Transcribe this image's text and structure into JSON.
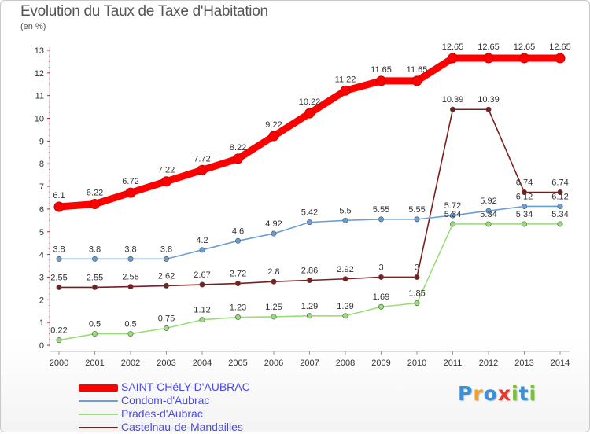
{
  "header": {
    "title": "Evolution du Taux de Taxe d'Habitation",
    "subtitle": "(en %)"
  },
  "chart_data": {
    "type": "line",
    "x": [
      "2000",
      "2001",
      "2002",
      "2003",
      "2004",
      "2005",
      "2006",
      "2007",
      "2008",
      "2009",
      "2010",
      "2011",
      "2012",
      "2013",
      "2014"
    ],
    "ylim": [
      0,
      13
    ],
    "yticks": [
      "0",
      "1",
      "2",
      "3",
      "4",
      "5",
      "6",
      "7",
      "8",
      "9",
      "10",
      "11",
      "12",
      "13"
    ],
    "grid": false,
    "legend_position": "bottom-left",
    "series": [
      {
        "name": "SAINT-CHéLY-D'AUBRAC",
        "color": "#ff0000",
        "values": [
          6.1,
          6.22,
          6.72,
          7.22,
          7.72,
          8.22,
          9.22,
          10.22,
          11.22,
          11.65,
          11.65,
          12.65,
          12.65,
          12.65,
          12.65
        ],
        "labels": [
          "6.1",
          "6.22",
          "6.72",
          "7.22",
          "7.72",
          "8.22",
          "9.22",
          "10.22",
          "11.22",
          "11.65",
          "11.65",
          "12.65",
          "12.65",
          "12.65",
          "12.65"
        ]
      },
      {
        "name": "Condom-d'Aubrac",
        "color": "#6a9fd4",
        "values": [
          3.8,
          3.8,
          3.8,
          3.8,
          4.2,
          4.6,
          4.92,
          5.42,
          5.5,
          5.55,
          5.55,
          5.72,
          5.92,
          6.12,
          6.12
        ],
        "labels": [
          "3.8",
          "3.8",
          "3.8",
          "3.8",
          "4.2",
          "4.6",
          "4.92",
          "5.42",
          "5.5",
          "5.55",
          "5.55",
          "5.72",
          "5.92",
          "6.12",
          "6.12"
        ]
      },
      {
        "name": "Prades-d'Aubrac",
        "color": "#99dd77",
        "values": [
          0.22,
          0.5,
          0.5,
          0.75,
          1.12,
          1.23,
          1.25,
          1.29,
          1.29,
          1.69,
          1.85,
          5.34,
          5.34,
          5.34,
          5.34
        ],
        "labels": [
          "0.22",
          "0.5",
          "0.5",
          "0.75",
          "1.12",
          "1.23",
          "1.25",
          "1.29",
          "1.29",
          "1.69",
          "1.85",
          "5.34",
          "5.34",
          "5.34",
          "5.34"
        ]
      },
      {
        "name": "Castelnau-de-Mandailles",
        "color": "#7a1f1f",
        "values": [
          2.55,
          2.55,
          2.58,
          2.62,
          2.67,
          2.72,
          2.8,
          2.86,
          2.92,
          3,
          3,
          10.39,
          10.39,
          6.74,
          6.74
        ],
        "labels": [
          "2.55",
          "2.55",
          "2.58",
          "2.62",
          "2.67",
          "2.72",
          "2.8",
          "2.86",
          "2.92",
          "3",
          "3",
          "10.39",
          "10.39",
          "6.74",
          "6.74"
        ]
      }
    ]
  },
  "logo": {
    "letters": [
      "P",
      "r",
      "o",
      "x",
      "i",
      "t",
      "i"
    ],
    "colors": [
      "#3d8fd6",
      "#f0a12a",
      "#3d8fd6",
      "#e53a2f",
      "#7cbf3a",
      "#3d8fd6",
      "#7cbf3a"
    ]
  }
}
